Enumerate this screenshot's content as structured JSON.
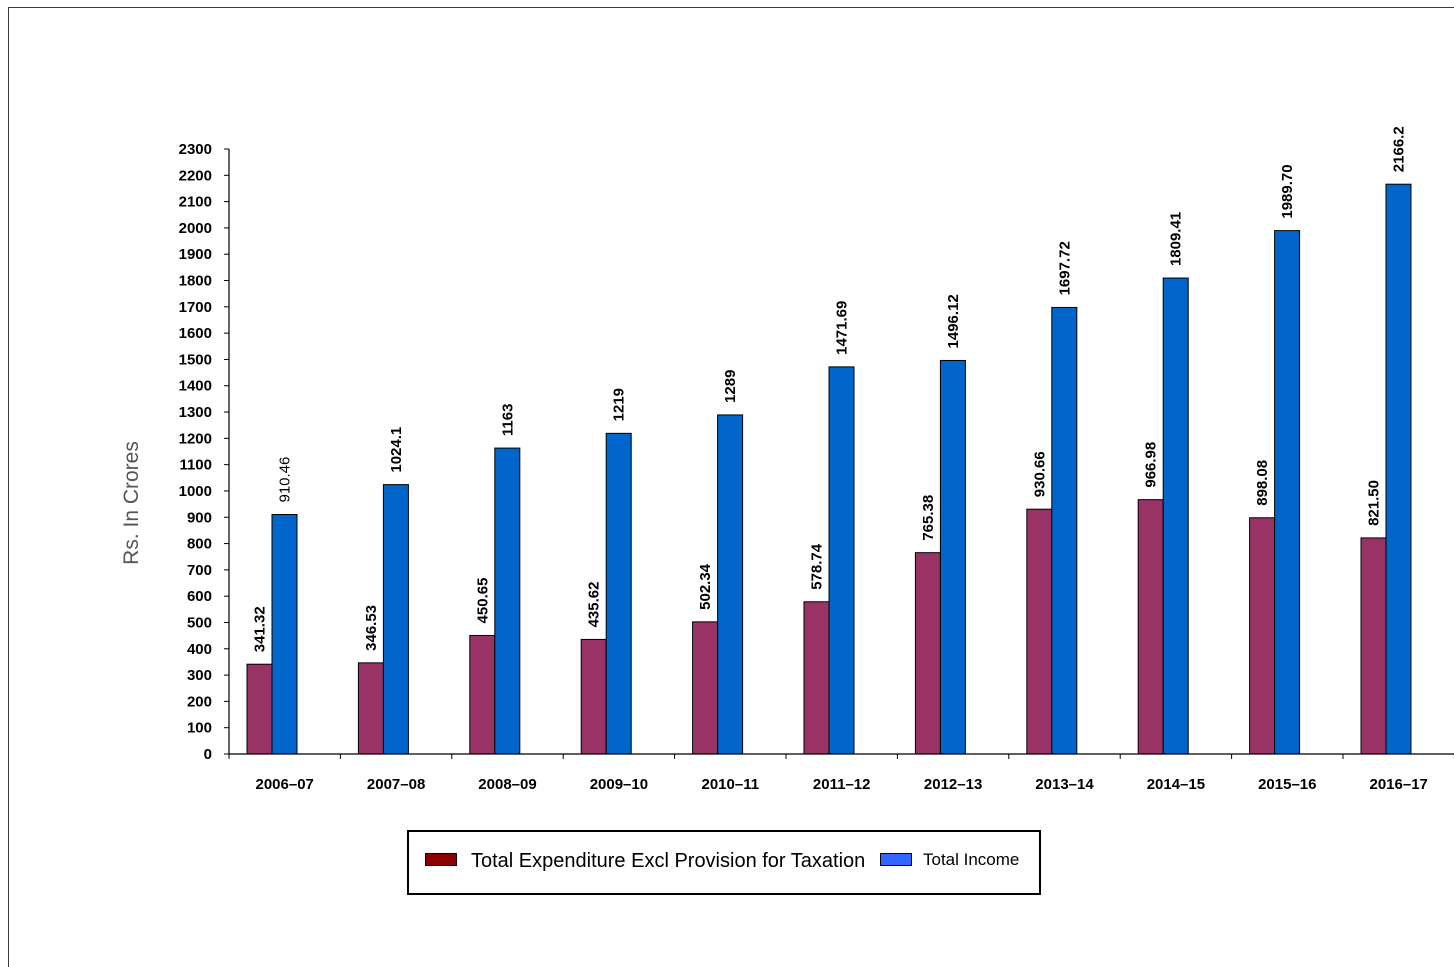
{
  "chart_data": {
    "type": "bar",
    "ylabel": "Rs. In Crores",
    "xlabel": "",
    "title": "",
    "ylim": [
      0,
      2300
    ],
    "ytick_step": 100,
    "categories": [
      "2006–07",
      "2007–08",
      "2008–09",
      "2009–10",
      "2010–11",
      "2011–12",
      "2012–13",
      "2013–14",
      "2014–15",
      "2015–16",
      "2016–17"
    ],
    "series": [
      {
        "name": "Total Expenditure Excl Provision for Taxation",
        "color": "#993366",
        "legend_color": "#8b0000",
        "values": [
          341.32,
          346.53,
          450.65,
          435.62,
          502.34,
          578.74,
          765.38,
          930.66,
          966.98,
          898.08,
          821.5
        ],
        "labels": [
          "341.32",
          "346.53",
          "450.65",
          "435.62",
          "502.34",
          "578.74",
          "765.38",
          "930.66",
          "966.98",
          "898.08",
          "821.50"
        ]
      },
      {
        "name": "Total Income",
        "color": "#0066cc",
        "legend_color": "#3366ff",
        "values": [
          910.46,
          1024.1,
          1163,
          1219,
          1289,
          1471.69,
          1496.12,
          1697.72,
          1809.41,
          1989.7,
          2166.2
        ],
        "labels": [
          "910.46",
          "1024.1",
          "1163",
          "1219",
          "1289",
          "1471.69",
          "1496.12",
          "1697.72",
          "1809.41",
          "1989.70",
          "2166.2"
        ]
      }
    ],
    "grid": false,
    "legend_position": "bottom"
  }
}
